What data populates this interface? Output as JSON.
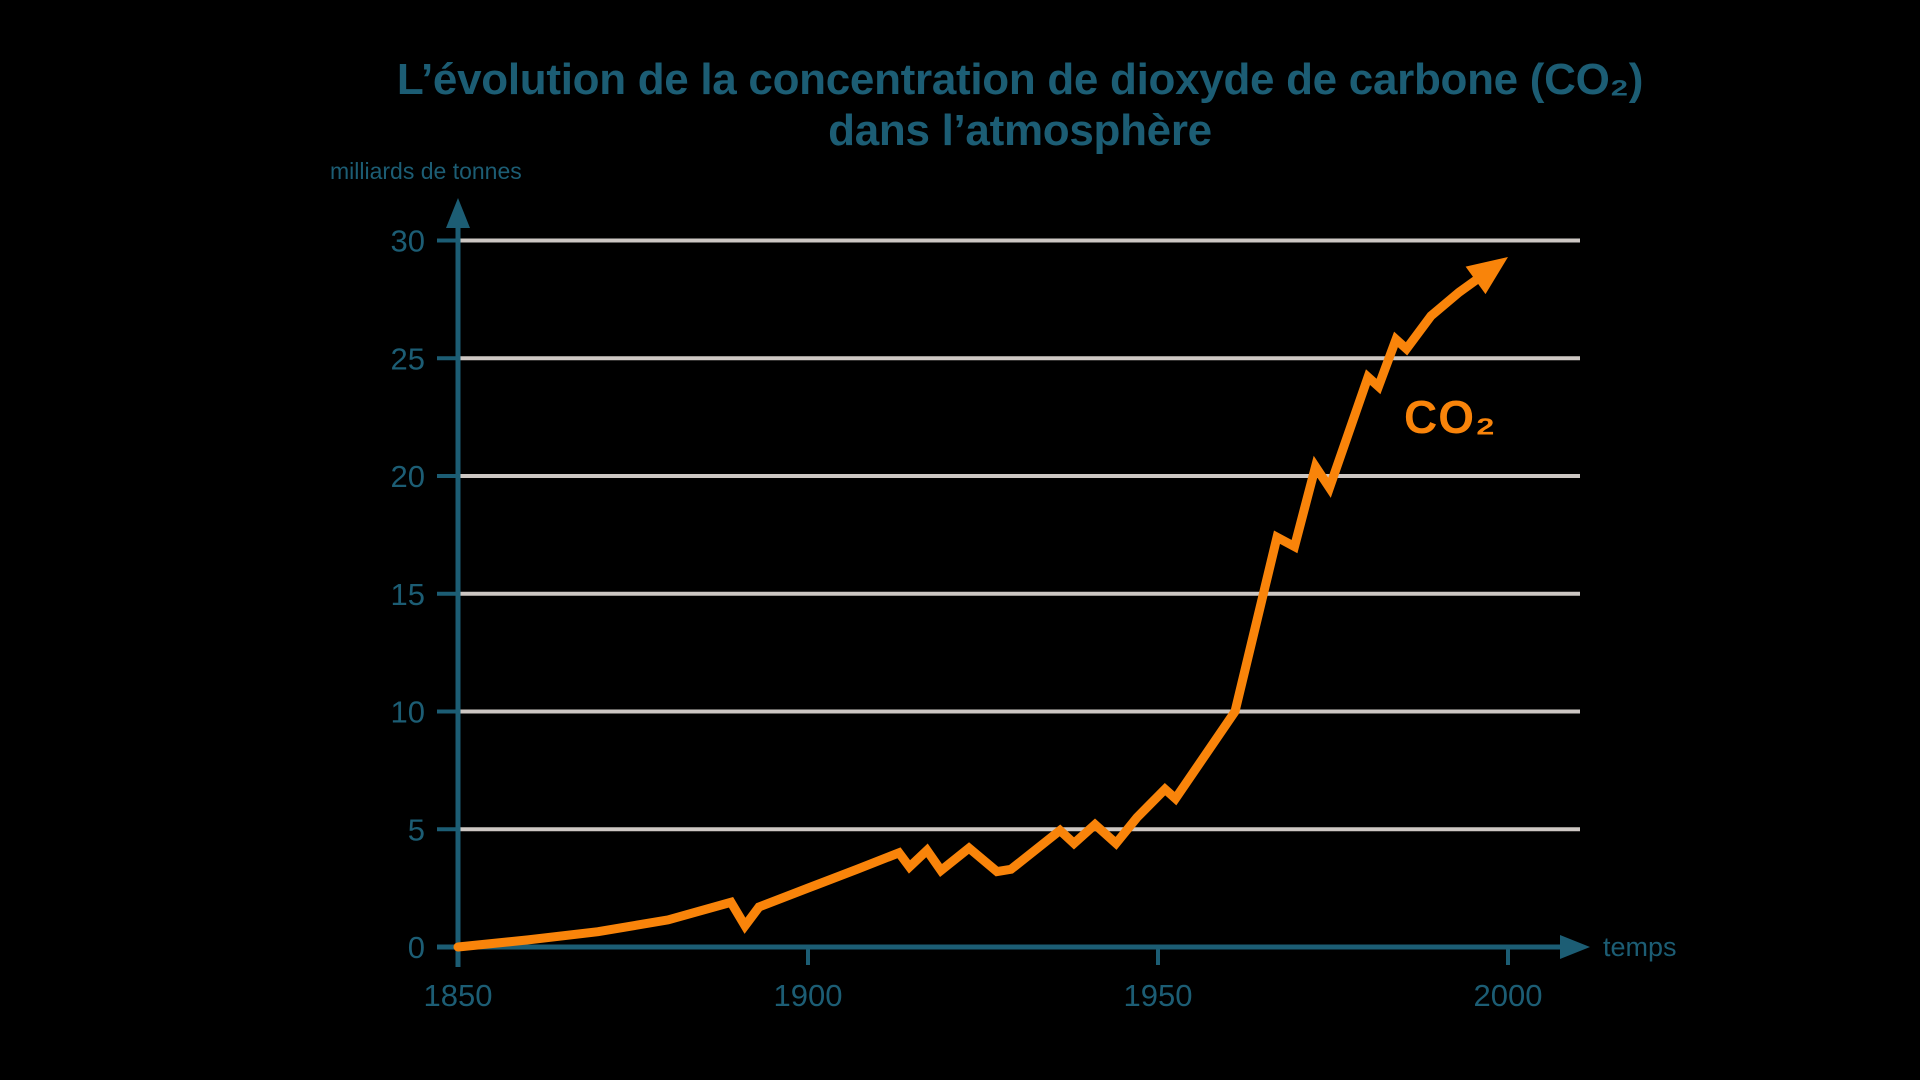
{
  "title": {
    "line1": "L’évolution de la concentration de dioxyde de carbone (CO₂)",
    "line2": "dans l’atmosphère"
  },
  "axes": {
    "y_label": "milliards de tonnes",
    "x_label": "temps"
  },
  "series_label": "CO₂",
  "colors": {
    "teal": "#1C5D74",
    "orange": "#F9840A",
    "gridline": "#CDC7C3",
    "background": "#000000"
  },
  "chart_data": {
    "type": "line",
    "title": "L’évolution de la concentration de dioxyde de carbone (CO₂) dans l’atmosphère",
    "xlabel": "temps",
    "ylabel": "milliards de tonnes",
    "xlim": [
      1850,
      2012
    ],
    "ylim": [
      0,
      31
    ],
    "xticks": [
      1850,
      1900,
      1950,
      2000
    ],
    "yticks": [
      0,
      5,
      10,
      15,
      20,
      25,
      30
    ],
    "grid": "horizontal",
    "legend_position": "inline-right",
    "end_marker": "arrow",
    "series": [
      {
        "name": "CO₂",
        "color": "#F9840A",
        "points": [
          [
            1850,
            0
          ],
          [
            1860,
            0.3
          ],
          [
            1870,
            0.65
          ],
          [
            1880,
            1.15
          ],
          [
            1889,
            1.9
          ],
          [
            1891,
            0.9
          ],
          [
            1893,
            1.7
          ],
          [
            1900,
            2.5
          ],
          [
            1907,
            3.3
          ],
          [
            1913,
            4.0
          ],
          [
            1914.5,
            3.4
          ],
          [
            1917,
            4.1
          ],
          [
            1919,
            3.25
          ],
          [
            1923,
            4.2
          ],
          [
            1927,
            3.2
          ],
          [
            1929,
            3.3
          ],
          [
            1936,
            4.95
          ],
          [
            1938,
            4.4
          ],
          [
            1941,
            5.2
          ],
          [
            1944,
            4.4
          ],
          [
            1947,
            5.5
          ],
          [
            1951,
            6.7
          ],
          [
            1952.5,
            6.3
          ],
          [
            1961,
            10.0
          ],
          [
            1967,
            17.4
          ],
          [
            1969.5,
            17.0
          ],
          [
            1972.5,
            20.4
          ],
          [
            1974.5,
            19.5
          ],
          [
            1980,
            24.2
          ],
          [
            1981.5,
            23.8
          ],
          [
            1984,
            25.8
          ],
          [
            1985.5,
            25.4
          ],
          [
            1989,
            26.8
          ],
          [
            1993,
            27.8
          ],
          [
            2000,
            29.3
          ]
        ]
      }
    ]
  }
}
